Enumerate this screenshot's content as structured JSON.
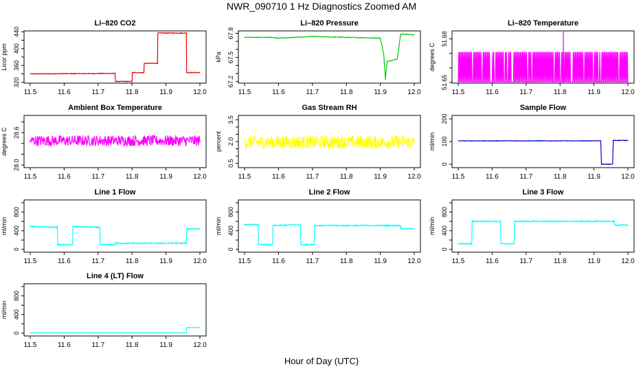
{
  "title": "NWR_090710  1 Hz Diagnostics Zoomed AM",
  "xlabel": "Hour of Day (UTC)",
  "chart_data": [
    {
      "type": "line",
      "title": "Li–820 CO2",
      "ylabel": "Licor ppm",
      "color": "#dd0000",
      "xlim": [
        11.5,
        12.0
      ],
      "ylim": [
        318,
        442
      ],
      "yticks": [
        320,
        340,
        360,
        380,
        400,
        420,
        440
      ],
      "ytick_labels": [
        "320",
        "",
        "360",
        "",
        "400",
        "",
        "440"
      ],
      "xticks": [
        "11.5",
        "11.6",
        "11.7",
        "11.8",
        "11.9",
        "12.0"
      ],
      "noise": 0.8,
      "spikes": [],
      "x": [
        11.5,
        11.75,
        11.751,
        11.8,
        11.801,
        11.835,
        11.836,
        11.875,
        11.876,
        11.96,
        11.961,
        12.0
      ],
      "y": [
        340,
        341,
        322,
        322,
        343,
        343,
        365,
        365,
        437,
        437,
        343,
        343
      ]
    },
    {
      "type": "line",
      "title": "Li–820 Pressure",
      "ylabel": "kPa",
      "color": "#00cc00",
      "xlim": [
        11.5,
        12.0
      ],
      "ylim": [
        67.18,
        67.83
      ],
      "yticks": [
        67.2,
        67.3,
        67.4,
        67.5,
        67.6,
        67.7,
        67.8
      ],
      "ytick_labels": [
        "67.2",
        "",
        "",
        "67.5",
        "",
        "",
        "67.8"
      ],
      "xticks": [
        "11.5",
        "11.6",
        "11.7",
        "11.8",
        "11.9",
        "12.0"
      ],
      "noise": 0.004,
      "spikes": [],
      "x": [
        11.5,
        11.58,
        11.6,
        11.7,
        11.8,
        11.9,
        11.91,
        11.915,
        11.92,
        11.95,
        11.96,
        11.97,
        12.0
      ],
      "y": [
        67.75,
        67.75,
        67.74,
        67.76,
        67.75,
        67.74,
        67.55,
        67.22,
        67.45,
        67.48,
        67.79,
        67.79,
        67.78
      ]
    },
    {
      "type": "line",
      "title": "Li–820 Temperature",
      "ylabel": "degrees C",
      "color": "#ff00ff",
      "xlim": [
        11.5,
        12.0
      ],
      "ylim": [
        51.6495,
        51.6855
      ],
      "yticks": [
        51.65,
        51.66,
        51.67,
        51.68
      ],
      "ytick_labels": [
        "51.65",
        "",
        "",
        "51.68"
      ],
      "xticks": [
        "11.5",
        "11.6",
        "11.7",
        "11.8",
        "11.9",
        "12.0"
      ],
      "mode": "toggle",
      "low": 51.65,
      "high": 51.671,
      "spikes": [
        [
          11.81,
          51.6855
        ]
      ]
    },
    {
      "type": "line",
      "title": "Ambient Box Temperature",
      "ylabel": "degrees C",
      "color": "#ff00ff",
      "xlim": [
        11.5,
        12.0
      ],
      "ylim": [
        27.95,
        28.92
      ],
      "yticks": [
        28.0,
        28.2,
        28.4,
        28.6,
        28.8
      ],
      "ytick_labels": [
        "28.0",
        "",
        "",
        "28.6",
        ""
      ],
      "xticks": [
        "11.5",
        "11.6",
        "11.7",
        "11.8",
        "11.9",
        "12.0"
      ],
      "noise": 0.1,
      "spikes": [],
      "x": [
        11.5,
        12.0
      ],
      "y": [
        28.45,
        28.45
      ]
    },
    {
      "type": "line",
      "title": "Gas Stream RH",
      "ylabel": "percent",
      "color": "#ffff00",
      "xlim": [
        11.5,
        12.0
      ],
      "ylim": [
        0.2,
        3.8
      ],
      "yticks": [
        0.5,
        1.0,
        1.5,
        2.0,
        2.5,
        3.0,
        3.5
      ],
      "ytick_labels": [
        "0.5",
        "",
        "",
        "2.0",
        "",
        "",
        "3.5"
      ],
      "xticks": [
        "11.5",
        "11.6",
        "11.7",
        "11.8",
        "11.9",
        "12.0"
      ],
      "noise": 0.45,
      "spikes": [],
      "x": [
        11.5,
        12.0
      ],
      "y": [
        1.95,
        1.95
      ]
    },
    {
      "type": "line",
      "title": "Sample Flow",
      "ylabel": "ml/min",
      "color": "#0000cc",
      "xlim": [
        11.5,
        12.0
      ],
      "ylim": [
        -15,
        215
      ],
      "yticks": [
        0,
        100,
        200
      ],
      "ytick_labels": [
        "0",
        "100",
        "200"
      ],
      "xticks": [
        "11.5",
        "11.6",
        "11.7",
        "11.8",
        "11.9",
        "12.0"
      ],
      "noise": 1.2,
      "spikes": [],
      "x": [
        11.5,
        11.92,
        11.922,
        11.955,
        11.957,
        12.0
      ],
      "y": [
        103,
        103,
        0,
        0,
        105,
        105
      ]
    },
    {
      "type": "line",
      "title": "Line 1 Flow",
      "ylabel": "ml/min",
      "color": "#00ffff",
      "xlim": [
        11.5,
        12.0
      ],
      "ylim": [
        -60,
        1060
      ],
      "yticks": [
        0,
        200,
        400,
        600,
        800,
        1000
      ],
      "ytick_labels": [
        "0",
        "",
        "400",
        "",
        "800",
        ""
      ],
      "xticks": [
        "11.5",
        "11.6",
        "11.7",
        "11.8",
        "11.9",
        "12.0"
      ],
      "noise": 12,
      "spikes": [],
      "x": [
        11.5,
        11.58,
        11.581,
        11.625,
        11.626,
        11.705,
        11.706,
        11.75,
        11.751,
        11.96,
        11.961,
        12.0
      ],
      "y": [
        490,
        470,
        100,
        100,
        490,
        470,
        100,
        100,
        130,
        130,
        440,
        440
      ]
    },
    {
      "type": "line",
      "title": "Line 2 Flow",
      "ylabel": "ml/min",
      "color": "#00ffff",
      "xlim": [
        11.5,
        12.0
      ],
      "ylim": [
        -60,
        1060
      ],
      "yticks": [
        0,
        200,
        400,
        600,
        800,
        1000
      ],
      "ytick_labels": [
        "0",
        "",
        "400",
        "",
        "800",
        ""
      ],
      "xticks": [
        "11.5",
        "11.6",
        "11.7",
        "11.8",
        "11.9",
        "12.0"
      ],
      "noise": 12,
      "spikes": [],
      "x": [
        11.5,
        11.54,
        11.541,
        11.583,
        11.584,
        11.665,
        11.666,
        11.705,
        11.706,
        11.96,
        11.961,
        12.0
      ],
      "y": [
        530,
        530,
        100,
        100,
        510,
        530,
        100,
        100,
        510,
        510,
        440,
        440
      ]
    },
    {
      "type": "line",
      "title": "Line 3 Flow",
      "ylabel": "ml/min",
      "color": "#00ffff",
      "xlim": [
        11.5,
        12.0
      ],
      "ylim": [
        -60,
        1060
      ],
      "yticks": [
        0,
        200,
        400,
        600,
        800,
        1000
      ],
      "ytick_labels": [
        "0",
        "",
        "400",
        "",
        "800",
        ""
      ],
      "xticks": [
        "11.5",
        "11.6",
        "11.7",
        "11.8",
        "11.9",
        "12.0"
      ],
      "noise": 12,
      "spikes": [],
      "x": [
        11.5,
        11.54,
        11.541,
        11.625,
        11.626,
        11.665,
        11.666,
        11.96,
        11.961,
        12.0
      ],
      "y": [
        120,
        120,
        600,
        600,
        120,
        120,
        600,
        600,
        520,
        520
      ]
    },
    {
      "type": "line",
      "title": "Line 4 (LT) Flow",
      "ylabel": "ml/min",
      "color": "#00ffff",
      "xlim": [
        11.5,
        12.0
      ],
      "ylim": [
        -60,
        1060
      ],
      "yticks": [
        0,
        200,
        400,
        600,
        800,
        1000
      ],
      "ytick_labels": [
        "0",
        "",
        "400",
        "",
        "800",
        ""
      ],
      "xticks": [
        "11.5",
        "11.6",
        "11.7",
        "11.8",
        "11.9",
        "12.0"
      ],
      "noise": 1,
      "spikes": [],
      "x": [
        11.5,
        11.96,
        11.961,
        12.0
      ],
      "y": [
        5,
        5,
        120,
        120
      ]
    }
  ]
}
